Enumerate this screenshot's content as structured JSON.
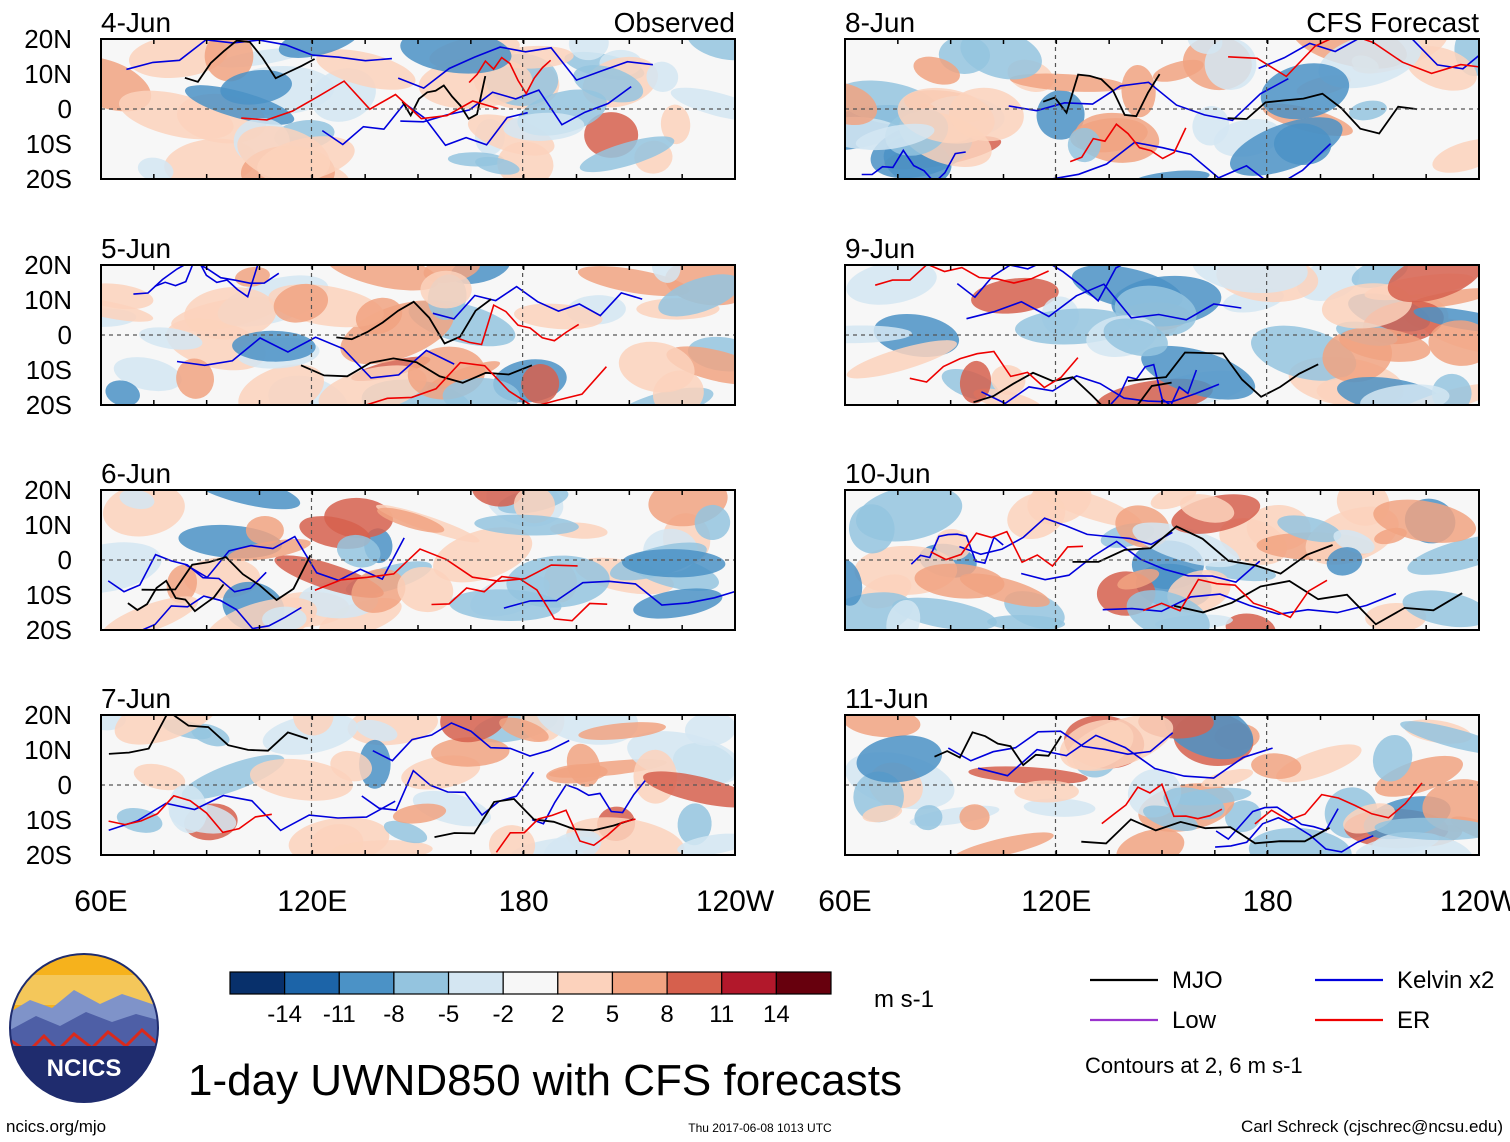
{
  "figure": {
    "title": "1-day UWND850 with CFS forecasts",
    "url": "ncics.org/mjo",
    "timestamp": "Thu 2017-06-08 1013 UTC",
    "credit": "Carl Schreck (cjschrec@ncsu.edu)",
    "logo_text": "NCICS"
  },
  "chart_data": {
    "type": "heatmap",
    "variable": "850-hPa zonal wind anomaly",
    "units": "m s-1",
    "columns": [
      {
        "label": "Observed",
        "dates": [
          "4-Jun",
          "5-Jun",
          "6-Jun",
          "7-Jun"
        ]
      },
      {
        "label": "CFS Forecast",
        "dates": [
          "8-Jun",
          "9-Jun",
          "10-Jun",
          "11-Jun"
        ]
      }
    ],
    "y_ticks": [
      "20N",
      "10N",
      "0",
      "10S",
      "20S"
    ],
    "x_ticks": [
      "60E",
      "120E",
      "180",
      "120W"
    ],
    "colorbar": {
      "levels": [
        "-14",
        "-11",
        "-8",
        "-5",
        "-2",
        "2",
        "5",
        "8",
        "11",
        "14"
      ],
      "colors": [
        "#08306b",
        "#1c64a8",
        "#4b92c6",
        "#94c4df",
        "#d4e6f2",
        "#f7f7f7",
        "#fcd2bc",
        "#f1a381",
        "#d6604d",
        "#b2182b",
        "#67000d"
      ],
      "units": "m s-1"
    },
    "legend": [
      {
        "label": "MJO",
        "color": "#000000"
      },
      {
        "label": "Kelvin x2",
        "color": "#0000dd"
      },
      {
        "label": "Low",
        "color": "#9a32cd"
      },
      {
        "label": "ER",
        "color": "#ee0000"
      }
    ],
    "contour_note": "Contours at 2, 6 m s-1"
  }
}
